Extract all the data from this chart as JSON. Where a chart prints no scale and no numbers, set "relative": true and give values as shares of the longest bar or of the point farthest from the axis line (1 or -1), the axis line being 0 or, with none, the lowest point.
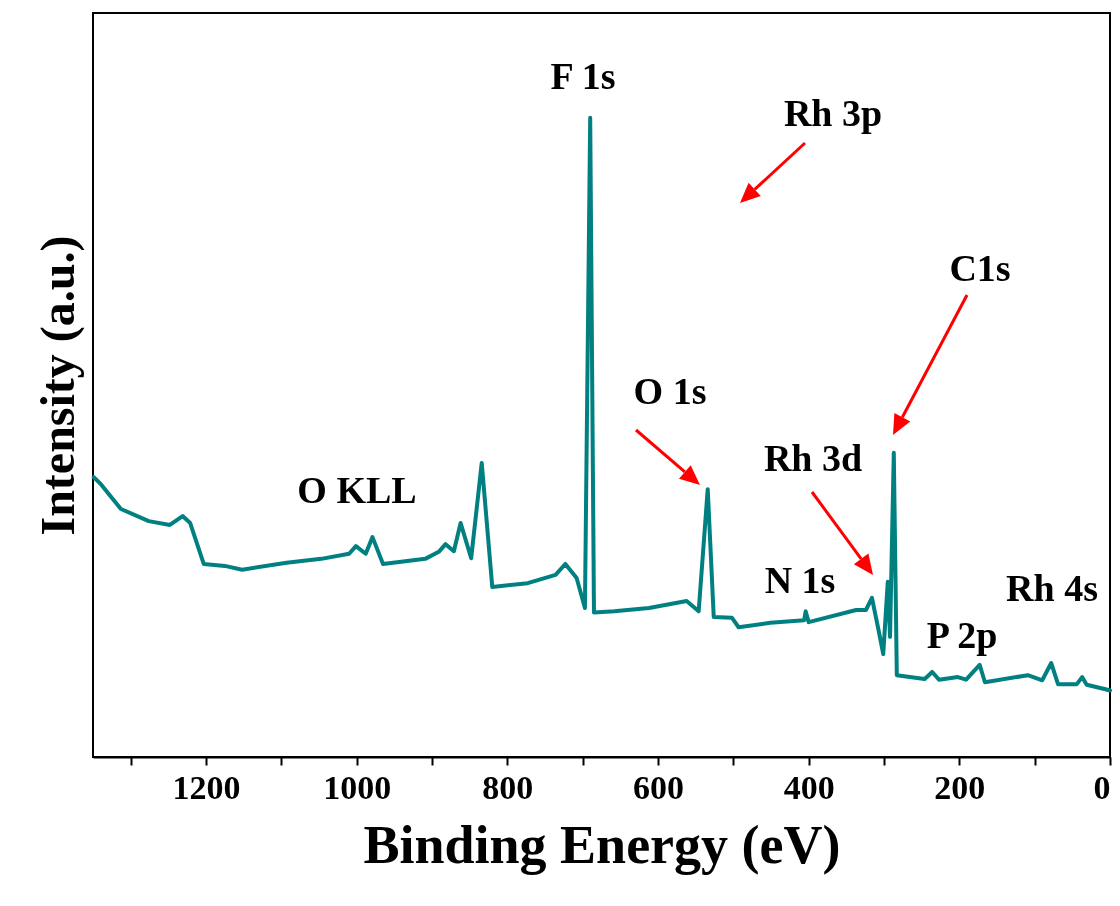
{
  "chart_data": {
    "type": "line",
    "xlabel": "Binding Energy (eV)",
    "ylabel": "Intensity (a.u.)",
    "relative": true,
    "xlim": [
      1350,
      0
    ],
    "xticks": [
      {
        "value": 1300,
        "label": null
      },
      1200,
      {
        "value": 1100,
        "label": null
      },
      1000,
      {
        "value": 900,
        "label": null
      },
      800,
      {
        "value": 700,
        "label": null
      },
      600,
      {
        "value": 500,
        "label": null
      },
      400,
      {
        "value": 300,
        "label": null
      },
      200,
      {
        "value": 100,
        "label": null
      },
      0
    ],
    "grid": false,
    "series": [
      {
        "color": "#008080",
        "x": [
          1349,
          1339,
          1313,
          1276,
          1248,
          1231,
          1221,
          1203,
          1175,
          1152,
          1093,
          1047,
          1010,
          1001,
          988,
          979,
          965,
          909,
          891,
          882,
          871,
          862,
          848,
          834,
          820,
          773,
          736,
          723,
          708,
          697,
          690,
          685,
          658,
          612,
          562,
          546,
          534,
          526,
          502,
          493,
          451,
          406,
          404,
          400,
          337,
          324,
          316,
          308,
          301,
          295,
          292,
          287,
          283,
          246,
          236,
          227,
          202,
          191,
          173,
          166,
          109,
          90,
          78,
          69,
          44,
          37,
          31,
          6,
          0
        ],
        "values": [
          0.438,
          0.426,
          0.388,
          0.369,
          0.363,
          0.377,
          0.366,
          0.302,
          0.299,
          0.293,
          0.304,
          0.31,
          0.318,
          0.33,
          0.318,
          0.344,
          0.302,
          0.31,
          0.321,
          0.333,
          0.322,
          0.366,
          0.311,
          0.46,
          0.266,
          0.272,
          0.285,
          0.302,
          0.28,
          0.233,
          1.0,
          0.226,
          0.228,
          0.233,
          0.244,
          0.228,
          0.419,
          0.219,
          0.218,
          0.203,
          0.21,
          0.214,
          0.228,
          0.211,
          0.23,
          0.23,
          0.249,
          0.203,
          0.161,
          0.274,
          0.188,
          0.476,
          0.128,
          0.122,
          0.133,
          0.121,
          0.125,
          0.121,
          0.144,
          0.117,
          0.128,
          0.12,
          0.147,
          0.114,
          0.114,
          0.125,
          0.113,
          0.106,
          0.104
        ]
      }
    ],
    "annotations": [
      "F 1s",
      "Rh 3p",
      "C1s",
      "O 1s",
      "Rh 3d",
      "N 1s",
      "P 2p",
      "Rh 4s",
      "O KLL"
    ]
  }
}
